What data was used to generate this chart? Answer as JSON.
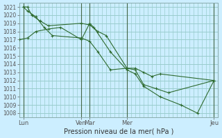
{
  "xlabel": "Pression niveau de la mer( hPa )",
  "bg_color": "#cceeff",
  "grid_color": "#99cccc",
  "line_color": "#2d6a2d",
  "ylim": [
    1007.5,
    1021.5
  ],
  "yticks": [
    1008,
    1009,
    1010,
    1011,
    1012,
    1013,
    1014,
    1015,
    1016,
    1017,
    1018,
    1019,
    1020,
    1021
  ],
  "xlim": [
    0,
    96
  ],
  "xtick_positions": [
    2,
    30,
    34,
    52,
    94
  ],
  "xtick_labels": [
    "Lun",
    "Ven",
    "Mar",
    "Mer",
    "Jeu"
  ],
  "vline_positions": [
    2,
    30,
    34,
    52,
    94
  ],
  "series": [
    {
      "x": [
        2,
        4,
        6,
        10,
        14,
        30,
        34,
        38,
        42,
        52,
        56,
        60,
        64,
        68,
        94
      ],
      "y": [
        1021.0,
        1021.0,
        1020.0,
        1019.3,
        1018.7,
        1019.0,
        1018.8,
        1018.0,
        1017.5,
        1013.5,
        1013.5,
        1013.0,
        1012.5,
        1012.8,
        1012.0
      ]
    },
    {
      "x": [
        2,
        4,
        8,
        12,
        16,
        30,
        34,
        38,
        44,
        52,
        56,
        60,
        66,
        72,
        94
      ],
      "y": [
        1021.0,
        1020.5,
        1019.8,
        1018.5,
        1017.5,
        1017.2,
        1016.8,
        1015.5,
        1013.3,
        1013.5,
        1013.3,
        1011.5,
        1011.0,
        1010.5,
        1012.0
      ]
    },
    {
      "x": [
        0,
        4,
        8,
        14,
        20,
        30,
        34,
        36,
        44,
        52,
        56,
        60,
        68,
        78,
        86,
        94
      ],
      "y": [
        1017.0,
        1017.2,
        1018.0,
        1018.3,
        1018.5,
        1017.0,
        1019.0,
        1018.5,
        1015.5,
        1013.3,
        1012.8,
        1011.3,
        1010.0,
        1009.0,
        1008.0,
        1012.0
      ]
    }
  ]
}
